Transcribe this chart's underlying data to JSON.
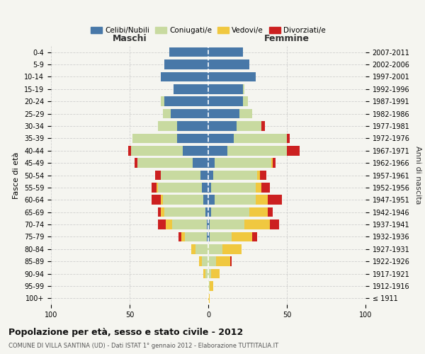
{
  "age_groups": [
    "100+",
    "95-99",
    "90-94",
    "85-89",
    "80-84",
    "75-79",
    "70-74",
    "65-69",
    "60-64",
    "55-59",
    "50-54",
    "45-49",
    "40-44",
    "35-39",
    "30-34",
    "25-29",
    "20-24",
    "15-19",
    "10-14",
    "5-9",
    "0-4"
  ],
  "birth_years": [
    "≤ 1911",
    "1912-1916",
    "1917-1921",
    "1922-1926",
    "1927-1931",
    "1932-1936",
    "1937-1941",
    "1942-1946",
    "1947-1951",
    "1952-1956",
    "1957-1961",
    "1962-1966",
    "1967-1971",
    "1972-1976",
    "1977-1981",
    "1982-1986",
    "1987-1991",
    "1992-1996",
    "1997-2001",
    "2002-2006",
    "2007-2011"
  ],
  "males": {
    "celibe": [
      0,
      0,
      0,
      0,
      0,
      1,
      1,
      2,
      3,
      4,
      5,
      10,
      16,
      20,
      20,
      24,
      28,
      22,
      30,
      28,
      25
    ],
    "coniugato": [
      0,
      0,
      2,
      4,
      8,
      14,
      22,
      26,
      26,
      28,
      25,
      35,
      33,
      28,
      12,
      5,
      2,
      0,
      0,
      0,
      0
    ],
    "vedovo": [
      0,
      0,
      1,
      2,
      3,
      2,
      4,
      2,
      1,
      1,
      0,
      0,
      0,
      0,
      0,
      0,
      0,
      0,
      0,
      0,
      0
    ],
    "divorziato": [
      0,
      0,
      0,
      0,
      0,
      2,
      5,
      2,
      6,
      3,
      4,
      2,
      2,
      0,
      0,
      0,
      0,
      0,
      0,
      0,
      0
    ]
  },
  "females": {
    "nubile": [
      0,
      0,
      0,
      0,
      0,
      1,
      1,
      2,
      4,
      2,
      3,
      4,
      12,
      16,
      18,
      20,
      22,
      22,
      30,
      26,
      22
    ],
    "coniugata": [
      0,
      1,
      2,
      5,
      9,
      14,
      22,
      24,
      26,
      28,
      28,
      36,
      38,
      34,
      16,
      8,
      3,
      1,
      0,
      0,
      0
    ],
    "vedova": [
      1,
      2,
      5,
      9,
      12,
      13,
      16,
      12,
      8,
      4,
      2,
      1,
      0,
      0,
      0,
      0,
      0,
      0,
      0,
      0,
      0
    ],
    "divorziata": [
      0,
      0,
      0,
      1,
      0,
      3,
      6,
      3,
      9,
      5,
      4,
      2,
      8,
      2,
      2,
      0,
      0,
      0,
      0,
      0,
      0
    ]
  },
  "colors": {
    "celibe": "#4878a8",
    "coniugato": "#c8daa0",
    "vedovo": "#f0c840",
    "divorziato": "#cc2020"
  },
  "xlim": 100,
  "title": "Popolazione per età, sesso e stato civile - 2012",
  "subtitle": "COMUNE DI VILLA SANTINA (UD) - Dati ISTAT 1° gennaio 2012 - Elaborazione TUTTITALIA.IT",
  "xlabel_left": "Maschi",
  "xlabel_right": "Femmine",
  "ylabel": "Fasce di età",
  "ylabel_right": "Anni di nascita",
  "bg_color": "#f5f5f0",
  "grid_color": "#cccccc"
}
